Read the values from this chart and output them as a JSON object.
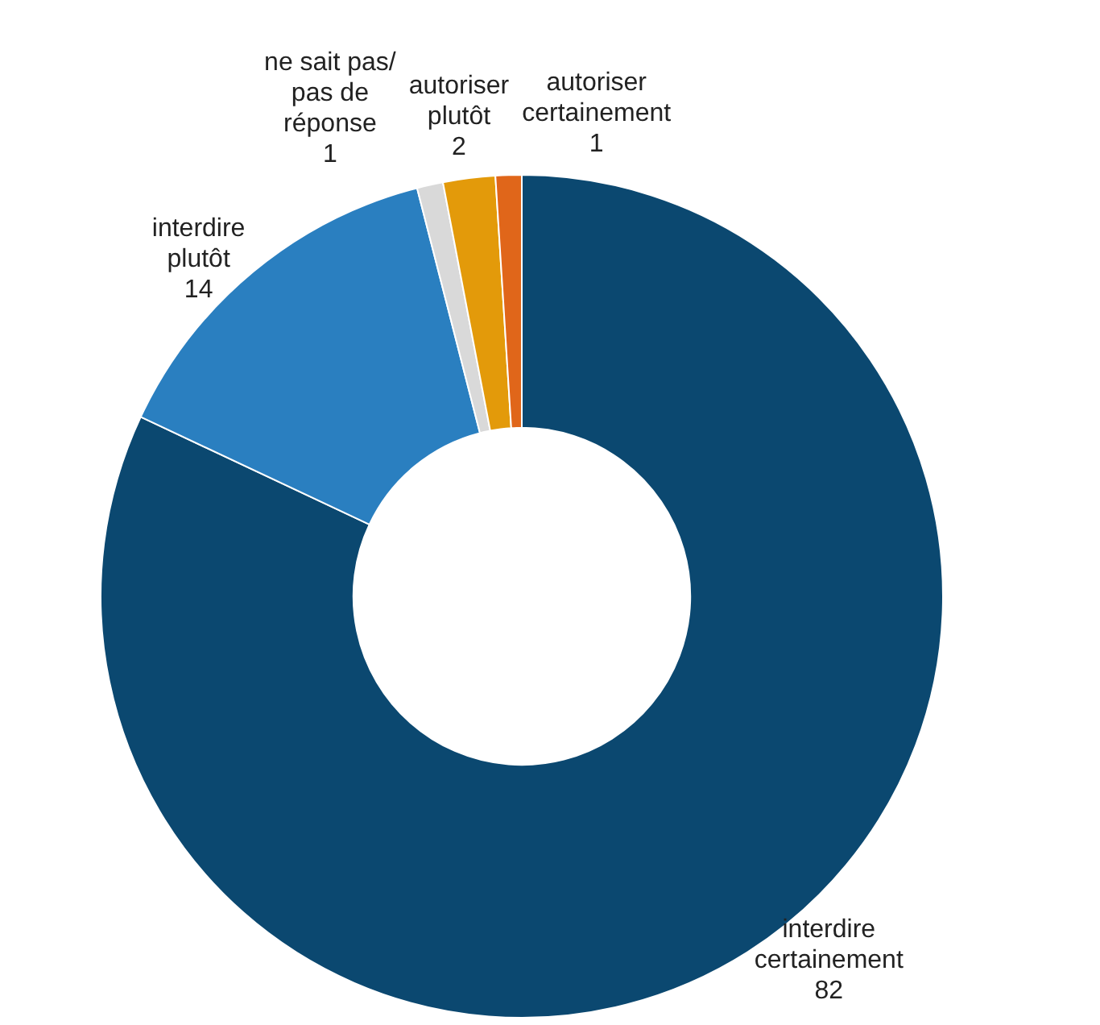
{
  "chart_data": {
    "type": "donut",
    "categories": [
      "interdire certainement",
      "interdire plutôt",
      "ne sait pas/ pas de réponse",
      "autoriser plutôt",
      "autoriser certainement"
    ],
    "values": [
      82,
      14,
      1,
      2,
      1
    ],
    "colors": [
      "#0b4870",
      "#2a7fc0",
      "#d9d9d9",
      "#e39a0a",
      "#e0661a"
    ],
    "data_labels": true,
    "legend": false
  }
}
